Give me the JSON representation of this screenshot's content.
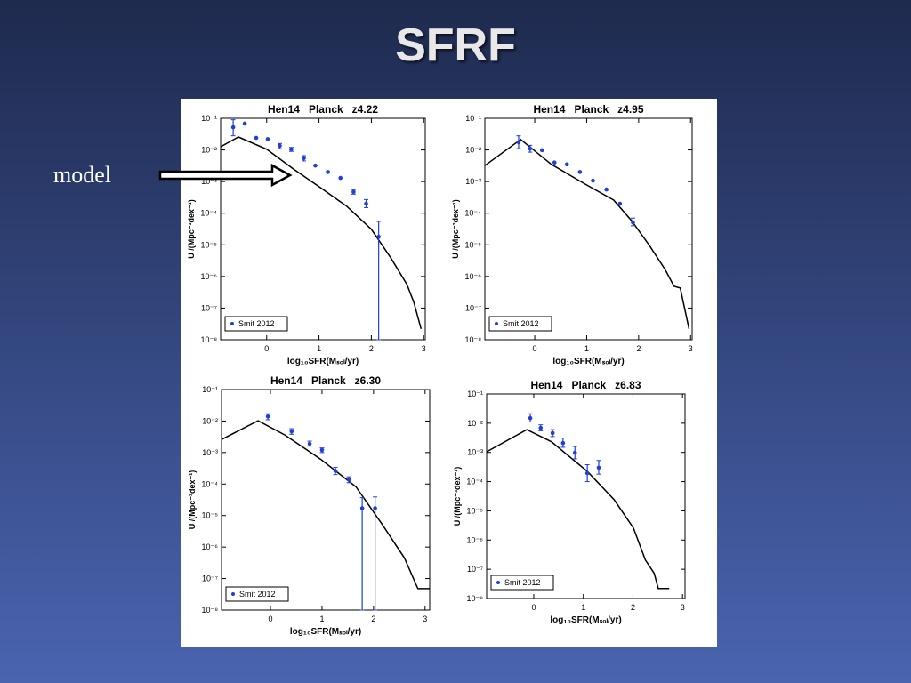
{
  "slide": {
    "title": "SFRF",
    "annotation": "model"
  },
  "chart_data": [
    {
      "type": "line",
      "title": "Hen14   Planck   z4.22",
      "xlabel": "log₁₀SFR(Mₛₒₗ/yr)",
      "ylabel": "U /(Mpc⁻³dex⁻¹)",
      "ylog": true,
      "xlim": [
        -0.88,
        3.03
      ],
      "ylim": [
        1e-08,
        0.1
      ],
      "xticks": [
        0,
        1,
        2,
        3
      ],
      "yticks": [
        {
          "value": 0.1,
          "label": "10⁻¹"
        },
        {
          "value": 0.01,
          "label": "10⁻²"
        },
        {
          "value": 0.001,
          "label": "10⁻³"
        },
        {
          "value": 0.0001,
          "label": "10⁻⁴"
        },
        {
          "value": 1e-05,
          "label": "10⁻⁵"
        },
        {
          "value": 1e-06,
          "label": "10⁻⁶"
        },
        {
          "value": 1e-07,
          "label": "10⁻⁷"
        },
        {
          "value": 1e-08,
          "label": "10⁻⁸"
        }
      ],
      "legend": "lower left",
      "series": [
        {
          "mode": "line",
          "color": "#000000",
          "x": [
            -0.88,
            -0.54,
            0,
            0.51,
            1,
            1.53,
            2,
            2.37,
            2.68,
            2.81,
            2.95
          ],
          "values": [
            0.0126,
            0.0257,
            0.0105,
            0.0025,
            0.00069,
            0.000166,
            3.1e-05,
            3.9e-06,
            5.6e-07,
            1.55e-07,
            2.2e-08
          ]
        },
        {
          "mode": "markers",
          "name": "Smit 2012",
          "color": "#1f3fd8",
          "x": [
            -0.64,
            -0.42,
            -0.2,
            0.02,
            0.25,
            0.47,
            0.71,
            0.93,
            1.17,
            1.41,
            1.66,
            1.9,
            2.14
          ],
          "values": [
            0.052,
            0.068,
            0.024,
            0.022,
            0.0135,
            0.0105,
            0.0055,
            0.0032,
            0.002,
            0.0013,
            0.00047,
            0.0002,
            1.8e-05
          ],
          "lower": [
            0.028,
            null,
            null,
            null,
            0.011,
            0.009,
            0.0045,
            null,
            null,
            null,
            0.0004,
            0.00015,
            1e-08
          ],
          "upper": [
            0.09,
            null,
            null,
            null,
            0.016,
            0.012,
            0.0066,
            null,
            null,
            null,
            0.00056,
            0.00027,
            5.5e-05
          ]
        }
      ]
    },
    {
      "type": "line",
      "title": "Hen14   Planck   z4.95",
      "xlabel": "log₁₀SFR(Mₛₒₗ/yr)",
      "ylabel": "U /(Mpc⁻³dex⁻¹)",
      "ylog": true,
      "xlim": [
        -0.96,
        3.03
      ],
      "ylim": [
        1e-08,
        0.1
      ],
      "xticks": [
        0,
        1,
        2,
        3
      ],
      "yticks": [
        {
          "value": 0.1,
          "label": "10⁻¹"
        },
        {
          "value": 0.01,
          "label": "10⁻²"
        },
        {
          "value": 0.001,
          "label": "10⁻³"
        },
        {
          "value": 0.0001,
          "label": "10⁻⁴"
        },
        {
          "value": 1e-05,
          "label": "10⁻⁵"
        },
        {
          "value": 1e-06,
          "label": "10⁻⁶"
        },
        {
          "value": 1e-07,
          "label": "10⁻⁷"
        },
        {
          "value": 1e-08,
          "label": "10⁻⁸"
        }
      ],
      "legend": "lower left",
      "series": [
        {
          "mode": "line",
          "color": "#000000",
          "x": [
            -0.96,
            -0.27,
            0.32,
            1.0,
            1.52,
            1.86,
            2.2,
            2.51,
            2.68,
            2.8,
            2.97
          ],
          "values": [
            0.0032,
            0.0214,
            0.0035,
            0.00078,
            0.00026,
            5.9e-05,
            1e-05,
            1.66e-06,
            4.9e-07,
            4.3e-07,
            2.2e-08
          ]
        },
        {
          "mode": "markers",
          "name": "Smit 2012",
          "color": "#1f3fd8",
          "x": [
            -0.31,
            -0.09,
            0.14,
            0.38,
            0.62,
            0.87,
            1.12,
            1.38,
            1.64,
            1.89
          ],
          "values": [
            0.0175,
            0.011,
            0.0098,
            0.004,
            0.0035,
            0.002,
            0.00107,
            0.00056,
            0.0002,
            5.1e-05
          ],
          "lower": [
            0.011,
            0.0085,
            null,
            null,
            null,
            null,
            null,
            null,
            null,
            4e-05
          ],
          "upper": [
            0.028,
            0.014,
            null,
            null,
            null,
            null,
            null,
            null,
            null,
            7e-05
          ]
        }
      ]
    },
    {
      "type": "line",
      "title": "Hen14   Planck   z6.30",
      "xlabel": "log₁₀SFR(Mₛₒₗ/yr)",
      "ylabel": "U /(Mpc⁻³dex⁻¹)",
      "ylog": true,
      "xlim": [
        -0.95,
        3.09
      ],
      "ylim": [
        1e-08,
        0.1
      ],
      "xticks": [
        0,
        1,
        2,
        3
      ],
      "yticks": [
        {
          "value": 0.1,
          "label": "10⁻¹"
        },
        {
          "value": 0.01,
          "label": "10⁻²"
        },
        {
          "value": 0.001,
          "label": "10⁻³"
        },
        {
          "value": 0.0001,
          "label": "10⁻⁴"
        },
        {
          "value": 1e-05,
          "label": "10⁻⁵"
        },
        {
          "value": 1e-06,
          "label": "10⁻⁶"
        },
        {
          "value": 1e-07,
          "label": "10⁻⁷"
        },
        {
          "value": 1e-08,
          "label": "10⁻⁸"
        }
      ],
      "legend": "lower left",
      "series": [
        {
          "mode": "line",
          "color": "#000000",
          "x": [
            -0.95,
            -0.24,
            0.28,
            0.97,
            1.66,
            2.17,
            2.6,
            2.86,
            3.09
          ],
          "values": [
            0.0026,
            0.0102,
            0.0036,
            0.00062,
            8.1e-05,
            5.2e-06,
            4.5e-07,
            4.8e-08,
            4.8e-08
          ]
        },
        {
          "mode": "markers",
          "name": "Smit 2012",
          "color": "#1f3fd8",
          "x": [
            -0.05,
            0.41,
            0.76,
            1.0,
            1.26,
            1.52,
            1.78,
            2.03
          ],
          "values": [
            0.014,
            0.0047,
            0.0019,
            0.0012,
            0.00026,
            0.000138,
            1.7e-05,
            1.7e-05
          ],
          "lower": [
            0.011,
            0.0038,
            0.0016,
            0.001,
            0.0002,
            0.00011,
            1e-08,
            1e-08
          ],
          "upper": [
            0.017,
            0.0057,
            0.0023,
            0.0014,
            0.00034,
            0.00017,
            3.7e-05,
            3.9e-05
          ]
        }
      ]
    },
    {
      "type": "line",
      "title": "Hen14   Planck   z6.83",
      "xlabel": "log₁₀SFR(Mₛₒₗ/yr)",
      "ylabel": "U /(Mpc⁻³dex⁻¹)",
      "ylog": true,
      "xlim": [
        -0.95,
        3.05
      ],
      "ylim": [
        1e-08,
        0.1
      ],
      "xticks": [
        0,
        1,
        2,
        3
      ],
      "yticks": [
        {
          "value": 0.1,
          "label": "10⁻¹"
        },
        {
          "value": 0.01,
          "label": "10⁻²"
        },
        {
          "value": 0.001,
          "label": "10⁻³"
        },
        {
          "value": 0.0001,
          "label": "10⁻⁴"
        },
        {
          "value": 1e-05,
          "label": "10⁻⁵"
        },
        {
          "value": 1e-06,
          "label": "10⁻⁶"
        },
        {
          "value": 1e-07,
          "label": "10⁻⁷"
        },
        {
          "value": 1e-08,
          "label": "10⁻⁸"
        }
      ],
      "legend": "lower left",
      "series": [
        {
          "mode": "line",
          "color": "#000000",
          "x": [
            -0.95,
            -0.14,
            0.36,
            1.08,
            1.62,
            2.01,
            2.25,
            2.43,
            2.51,
            2.73
          ],
          "values": [
            0.00105,
            0.006,
            0.0023,
            0.000224,
            2.4e-05,
            2.6e-06,
            2.1e-07,
            7.2e-08,
            2.2e-08,
            2.2e-08
          ]
        },
        {
          "mode": "markers",
          "name": "Smit 2012",
          "color": "#1f3fd8",
          "x": [
            -0.07,
            0.14,
            0.38,
            0.59,
            0.83,
            1.08,
            1.31
          ],
          "values": [
            0.015,
            0.0069,
            0.0046,
            0.0021,
            0.00098,
            0.000196,
            0.0003
          ],
          "lower": [
            0.011,
            0.0055,
            0.0035,
            0.0015,
            0.0006,
            0.0001,
            0.00018
          ],
          "upper": [
            0.021,
            0.0088,
            0.006,
            0.0031,
            0.0016,
            0.00038,
            0.00053
          ]
        }
      ]
    }
  ]
}
